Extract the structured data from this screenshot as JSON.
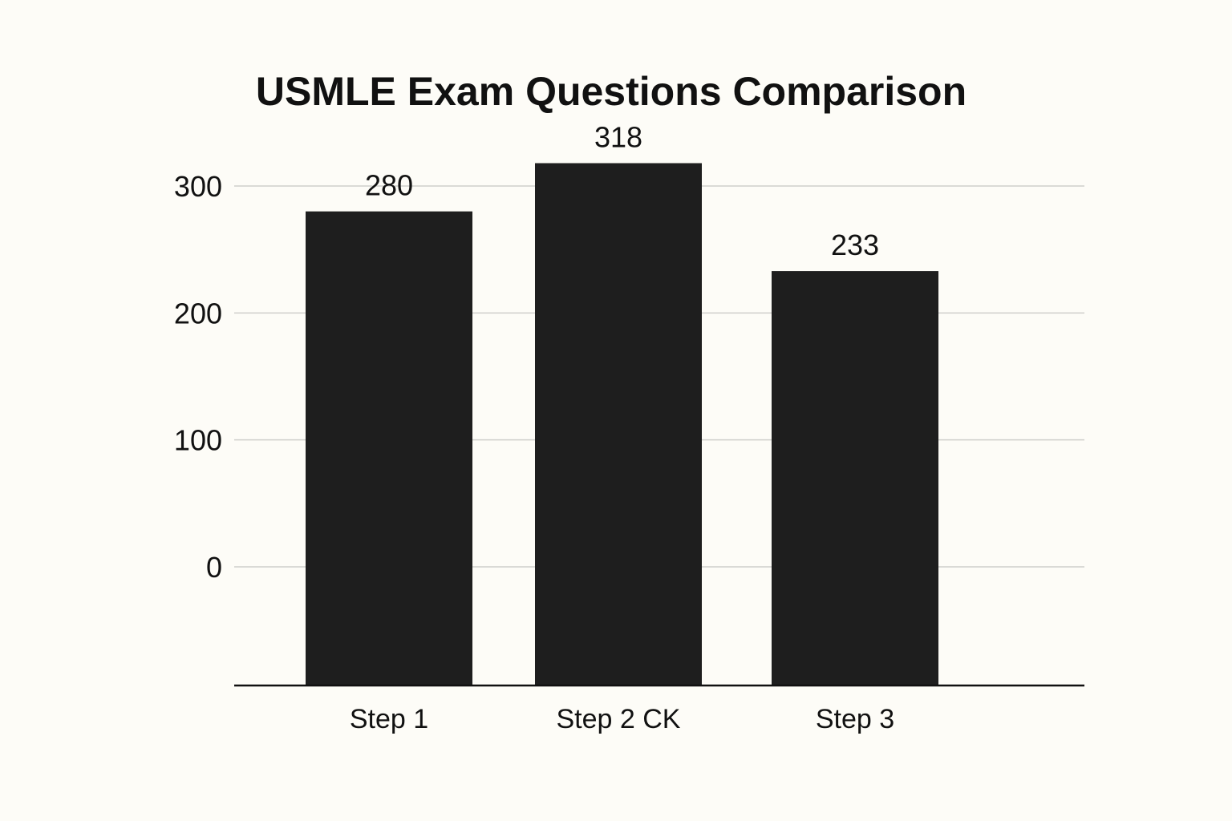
{
  "chart_data": {
    "type": "bar",
    "title": "USMLE Exam Questions Comparison",
    "xlabel": "",
    "ylabel": "",
    "categories": [
      "Step 1",
      "Step 2 CK",
      "Step 3"
    ],
    "values": [
      280,
      318,
      233
    ],
    "data_labels": [
      "280",
      "318",
      "233"
    ],
    "y_ticks": [
      0,
      100,
      200,
      300
    ],
    "ylim": [
      -93,
      300
    ],
    "grid": true,
    "legend": "none",
    "colors": {
      "background": "#fdfcf7",
      "bar": "#1e1e1e",
      "grid": "#cfcfcb",
      "axis": "#111111",
      "text": "#111111"
    }
  }
}
